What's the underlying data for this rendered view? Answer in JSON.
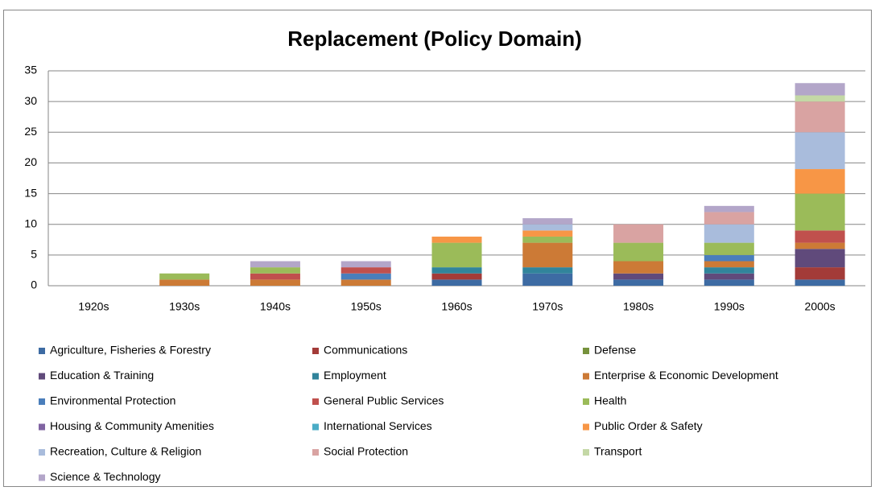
{
  "chart_data": {
    "type": "stacked-bar",
    "title": "Replacement (Policy Domain)",
    "categories": [
      "1920s",
      "1930s",
      "1940s",
      "1950s",
      "1960s",
      "1970s",
      "1980s",
      "1990s",
      "2000s"
    ],
    "ylim": [
      0,
      35
    ],
    "yticks": [
      0,
      5,
      10,
      15,
      20,
      25,
      30,
      35
    ],
    "grid": true,
    "series": [
      {
        "name": "Agriculture, Fisheries & Forestry",
        "color": "#3d6ba3",
        "values": [
          0,
          0,
          0,
          0,
          1,
          2,
          1,
          1,
          1
        ]
      },
      {
        "name": "Communications",
        "color": "#a33b38",
        "values": [
          0,
          0,
          0,
          0,
          1,
          0,
          0,
          0,
          2
        ]
      },
      {
        "name": "Defense",
        "color": "#76923c",
        "values": [
          0,
          0,
          0,
          0,
          0,
          0,
          0,
          0,
          0
        ]
      },
      {
        "name": "Education & Training",
        "color": "#604a7b",
        "values": [
          0,
          0,
          0,
          0,
          0,
          0,
          1,
          1,
          3
        ]
      },
      {
        "name": "Employment",
        "color": "#31849b",
        "values": [
          0,
          0,
          0,
          0,
          1,
          1,
          0,
          1,
          0
        ]
      },
      {
        "name": "Enterprise & Economic Development",
        "color": "#cc7a36",
        "values": [
          0,
          1,
          1,
          1,
          0,
          4,
          2,
          1,
          1
        ]
      },
      {
        "name": "Environmental Protection",
        "color": "#4a7ebb",
        "values": [
          0,
          0,
          0,
          1,
          0,
          0,
          0,
          1,
          0
        ]
      },
      {
        "name": "General Public Services",
        "color": "#c0504d",
        "values": [
          0,
          0,
          1,
          1,
          0,
          0,
          0,
          0,
          2
        ]
      },
      {
        "name": "Health",
        "color": "#9bbb59",
        "values": [
          0,
          1,
          1,
          0,
          4,
          1,
          3,
          2,
          6
        ]
      },
      {
        "name": "Housing & Community Amenities",
        "color": "#8064a2",
        "values": [
          0,
          0,
          0,
          0,
          0,
          0,
          0,
          0,
          0
        ]
      },
      {
        "name": "International Services",
        "color": "#4bacc6",
        "values": [
          0,
          0,
          0,
          0,
          0,
          0,
          0,
          0,
          0
        ]
      },
      {
        "name": "Public Order & Safety",
        "color": "#f79646",
        "values": [
          0,
          0,
          0,
          0,
          1,
          1,
          0,
          0,
          4
        ]
      },
      {
        "name": "Recreation, Culture & Religion",
        "color": "#a9bcdc",
        "values": [
          0,
          0,
          0,
          0,
          0,
          1,
          0,
          3,
          6
        ]
      },
      {
        "name": "Social Protection",
        "color": "#d9a3a2",
        "values": [
          0,
          0,
          0,
          0,
          0,
          0,
          3,
          2,
          5
        ]
      },
      {
        "name": "Transport",
        "color": "#c4d8a6",
        "values": [
          0,
          0,
          0,
          0,
          0,
          0,
          0,
          0,
          1
        ]
      },
      {
        "name": "Science & Technology",
        "color": "#b3a6c9",
        "values": [
          0,
          0,
          1,
          1,
          0,
          1,
          0,
          1,
          2
        ]
      }
    ]
  }
}
